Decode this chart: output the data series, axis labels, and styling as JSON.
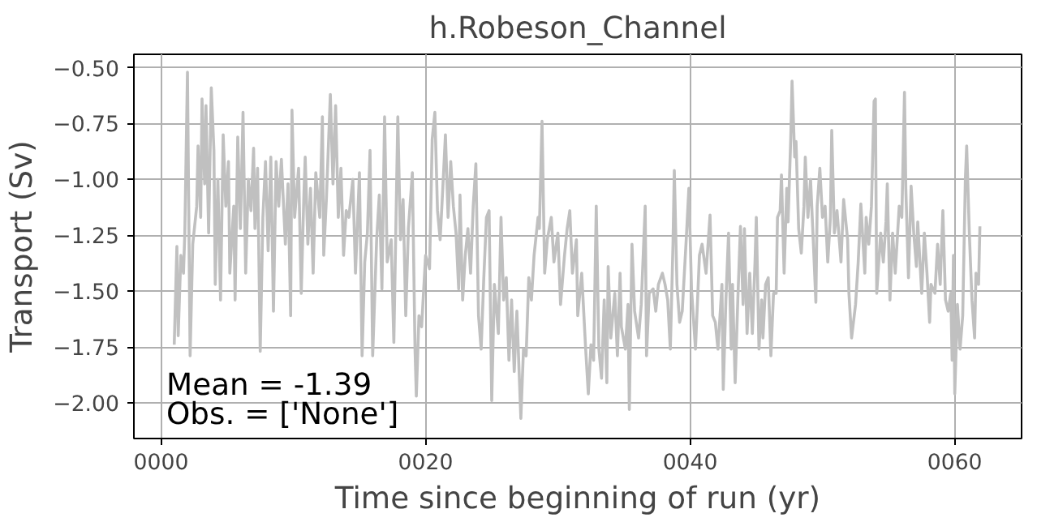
{
  "chart_data": {
    "type": "line",
    "title": "h.Robeson_Channel",
    "xlabel": "Time since beginning of run (yr)",
    "ylabel": "Transport (Sv)",
    "annotations": [
      "Mean = -1.39",
      "Obs. = ['None']"
    ],
    "xlim": [
      -2.05,
      65.05
    ],
    "ylim": [
      -2.16,
      -0.44
    ],
    "xticks": [
      {
        "value": 0,
        "label": "0000"
      },
      {
        "value": 20,
        "label": "0020"
      },
      {
        "value": 40,
        "label": "0040"
      },
      {
        "value": 60,
        "label": "0060"
      }
    ],
    "yticks": [
      {
        "value": -2.0,
        "label": "−2.00"
      },
      {
        "value": -1.75,
        "label": "−1.75"
      },
      {
        "value": -1.5,
        "label": "−1.50"
      },
      {
        "value": -1.25,
        "label": "−1.25"
      },
      {
        "value": -1.0,
        "label": "−1.00"
      },
      {
        "value": -0.75,
        "label": "−0.75"
      },
      {
        "value": -0.5,
        "label": "−0.50"
      }
    ],
    "grid": true,
    "series": [
      {
        "color": "#c0c0c0",
        "x": [
          1.0,
          1.2,
          1.3,
          1.5,
          1.7,
          1.8,
          2.0,
          2.2,
          2.4,
          2.7,
          2.8,
          3.0,
          3.1,
          3.3,
          3.4,
          3.6,
          3.8,
          4.0,
          4.1,
          4.3,
          4.5,
          4.7,
          4.9,
          5.1,
          5.2,
          5.5,
          5.6,
          5.8,
          6.0,
          6.2,
          6.4,
          6.6,
          6.8,
          7.0,
          7.1,
          7.3,
          7.5,
          7.7,
          7.9,
          8.1,
          8.3,
          8.5,
          8.7,
          8.9,
          9.1,
          9.4,
          9.6,
          9.8,
          9.9,
          10.1,
          10.4,
          10.6,
          10.8,
          10.9,
          11.1,
          11.3,
          11.5,
          11.7,
          12.0,
          12.2,
          12.3,
          12.5,
          12.8,
          13.0,
          13.2,
          13.4,
          13.6,
          13.8,
          14.0,
          14.2,
          14.5,
          14.7,
          15.0,
          15.2,
          15.4,
          15.6,
          15.8,
          16.0,
          16.3,
          16.5,
          16.7,
          16.9,
          17.1,
          17.4,
          17.6,
          17.9,
          18.1,
          18.3,
          18.5,
          18.7,
          19.0,
          19.2,
          19.3,
          19.5,
          19.7,
          20.0,
          20.3,
          20.5,
          20.7,
          20.9,
          21.1,
          21.3,
          21.5,
          21.7,
          21.9,
          22.1,
          22.3,
          22.5,
          22.6,
          22.8,
          23.0,
          23.2,
          23.4,
          23.6,
          23.8,
          24.0,
          24.2,
          24.4,
          24.6,
          24.8,
          25.0,
          25.2,
          25.5,
          25.7,
          25.9,
          26.1,
          26.3,
          26.5,
          26.7,
          26.9,
          27.1,
          27.2,
          27.4,
          27.6,
          27.8,
          28.0,
          28.2,
          28.5,
          28.6,
          28.8,
          29.0,
          29.2,
          29.5,
          29.7,
          30.0,
          30.2,
          30.5,
          30.7,
          30.9,
          31.1,
          31.4,
          31.5,
          31.8,
          32.1,
          32.3,
          32.5,
          32.7,
          32.9,
          33.1,
          33.3,
          33.5,
          33.7,
          33.8,
          34.0,
          34.3,
          34.5,
          34.7,
          34.8,
          35.1,
          35.3,
          35.4,
          35.6,
          35.8,
          36.1,
          36.3,
          36.6,
          36.7,
          36.9,
          37.2,
          37.4,
          37.6,
          37.9,
          38.1,
          38.3,
          38.5,
          38.7,
          38.8,
          39.0,
          39.2,
          39.4,
          39.7,
          39.9,
          40.1,
          40.4,
          40.7,
          40.9,
          41.2,
          41.5,
          41.7,
          41.9,
          42.1,
          42.4,
          42.5,
          42.7,
          42.9,
          43.1,
          43.2,
          43.4,
          43.6,
          43.8,
          44.0,
          44.1,
          44.3,
          44.5,
          44.7,
          44.9,
          45.0,
          45.2,
          45.4,
          45.5,
          45.7,
          45.9,
          46.1,
          46.3,
          46.5,
          46.6,
          46.8,
          46.9,
          47.1,
          47.3,
          47.4,
          47.6,
          47.7,
          47.9,
          48.0,
          48.2,
          48.4,
          48.6,
          48.7,
          48.9,
          49.1,
          49.3,
          49.5,
          49.6,
          49.8,
          50.0,
          50.2,
          50.4,
          50.6,
          50.7,
          50.9,
          51.1,
          51.4,
          51.6,
          51.9,
          52.0,
          52.2,
          52.5,
          52.7,
          52.9,
          53.2,
          53.3,
          53.5,
          53.7,
          53.9,
          54.0,
          54.1,
          54.4,
          54.6,
          54.8,
          54.9,
          55.1,
          55.3,
          55.5,
          55.8,
          56.0,
          56.2,
          56.3,
          56.5,
          56.7,
          56.9,
          57.1,
          57.2,
          57.5,
          57.7,
          57.9,
          58.1,
          58.2,
          58.5,
          58.7,
          58.9,
          59.1,
          59.3,
          59.5,
          59.7,
          59.8,
          59.9,
          60.0,
          60.2,
          60.4,
          60.6,
          60.8,
          60.9,
          61.1,
          61.3,
          61.5,
          61.6,
          61.8,
          61.9
        ],
        "values": [
          -1.74,
          -1.3,
          -1.7,
          -1.34,
          -1.42,
          -1.24,
          -0.52,
          -1.79,
          -1.29,
          -1.12,
          -0.85,
          -1.17,
          -0.64,
          -1.02,
          -0.67,
          -1.24,
          -0.59,
          -0.87,
          -1.47,
          -1.0,
          -1.54,
          -0.8,
          -1.12,
          -0.92,
          -1.42,
          -1.12,
          -1.54,
          -0.81,
          -1.22,
          -0.7,
          -1.42,
          -1.0,
          -1.14,
          -0.86,
          -1.22,
          -0.95,
          -1.77,
          -1.17,
          -0.92,
          -1.32,
          -0.9,
          -1.59,
          -0.92,
          -1.12,
          -0.91,
          -1.29,
          -1.02,
          -1.61,
          -0.69,
          -1.17,
          -0.95,
          -1.51,
          -1.07,
          -0.9,
          -1.29,
          -1.04,
          -1.42,
          -0.97,
          -1.17,
          -0.72,
          -1.34,
          -1.09,
          -0.62,
          -1.02,
          -0.67,
          -1.17,
          -0.95,
          -1.34,
          -1.14,
          -1.17,
          -1.0,
          -1.42,
          -0.97,
          -1.79,
          -1.37,
          -1.24,
          -0.87,
          -1.79,
          -1.27,
          -1.07,
          -1.49,
          -0.72,
          -1.37,
          -1.27,
          -1.73,
          -0.72,
          -1.27,
          -1.09,
          -1.61,
          -1.22,
          -0.97,
          -1.76,
          -1.97,
          -1.61,
          -1.66,
          -1.34,
          -1.4,
          -0.82,
          -0.7,
          -1.14,
          -1.27,
          -1.04,
          -0.8,
          -1.17,
          -0.92,
          -1.12,
          -1.24,
          -1.49,
          -1.07,
          -1.54,
          -1.34,
          -1.22,
          -1.42,
          -1.12,
          -0.93,
          -1.61,
          -1.76,
          -1.44,
          -1.17,
          -1.14,
          -1.99,
          -1.47,
          -1.69,
          -1.17,
          -1.54,
          -1.44,
          -1.81,
          -1.54,
          -1.86,
          -1.59,
          -1.91,
          -2.07,
          -1.76,
          -1.79,
          -1.44,
          -1.54,
          -1.34,
          -1.17,
          -1.22,
          -0.74,
          -1.42,
          -1.27,
          -1.17,
          -1.37,
          -1.24,
          -1.56,
          -1.34,
          -1.22,
          -1.14,
          -1.42,
          -1.27,
          -1.61,
          -1.42,
          -1.76,
          -1.96,
          -1.74,
          -1.81,
          -1.12,
          -1.76,
          -1.89,
          -1.54,
          -1.91,
          -1.39,
          -1.71,
          -1.51,
          -1.79,
          -1.42,
          -1.66,
          -1.76,
          -1.56,
          -2.03,
          -1.29,
          -1.59,
          -1.71,
          -1.56,
          -1.12,
          -1.79,
          -1.51,
          -1.49,
          -1.59,
          -1.47,
          -1.42,
          -1.47,
          -1.54,
          -1.76,
          -1.29,
          -0.96,
          -1.47,
          -1.64,
          -1.59,
          -1.27,
          -1.04,
          -1.49,
          -1.76,
          -1.34,
          -1.29,
          -1.42,
          -1.16,
          -1.61,
          -1.64,
          -1.76,
          -1.47,
          -1.94,
          -1.54,
          -1.24,
          -1.76,
          -1.47,
          -1.91,
          -1.54,
          -1.21,
          -1.56,
          -1.22,
          -1.69,
          -1.42,
          -1.69,
          -1.37,
          -1.17,
          -1.76,
          -1.54,
          -1.71,
          -1.47,
          -1.44,
          -1.79,
          -1.51,
          -1.51,
          -1.17,
          -1.14,
          -0.98,
          -1.42,
          -1.04,
          -1.19,
          -0.82,
          -0.56,
          -0.9,
          -0.83,
          -1.22,
          -1.33,
          -1.12,
          -0.9,
          -1.17,
          -1.0,
          -1.27,
          -1.55,
          -1.12,
          -0.95,
          -1.17,
          -1.12,
          -1.37,
          -1.17,
          -0.78,
          -1.24,
          -1.14,
          -1.37,
          -1.09,
          -1.27,
          -1.51,
          -1.71,
          -1.56,
          -1.37,
          -1.11,
          -1.42,
          -1.17,
          -1.29,
          -1.12,
          -0.65,
          -0.64,
          -1.51,
          -1.24,
          -1.37,
          -1.19,
          -1.02,
          -1.54,
          -1.24,
          -1.42,
          -1.12,
          -1.17,
          -0.61,
          -1.04,
          -1.44,
          -1.03,
          -1.24,
          -1.39,
          -1.19,
          -1.51,
          -1.24,
          -1.42,
          -1.64,
          -1.47,
          -1.51,
          -1.29,
          -1.47,
          -1.14,
          -1.54,
          -1.59,
          -1.51,
          -1.81,
          -1.34,
          -1.96,
          -1.56,
          -1.76,
          -1.61,
          -1.0,
          -0.85,
          -1.24,
          -1.54,
          -1.71,
          -1.42,
          -1.47,
          -1.21
        ]
      }
    ]
  }
}
